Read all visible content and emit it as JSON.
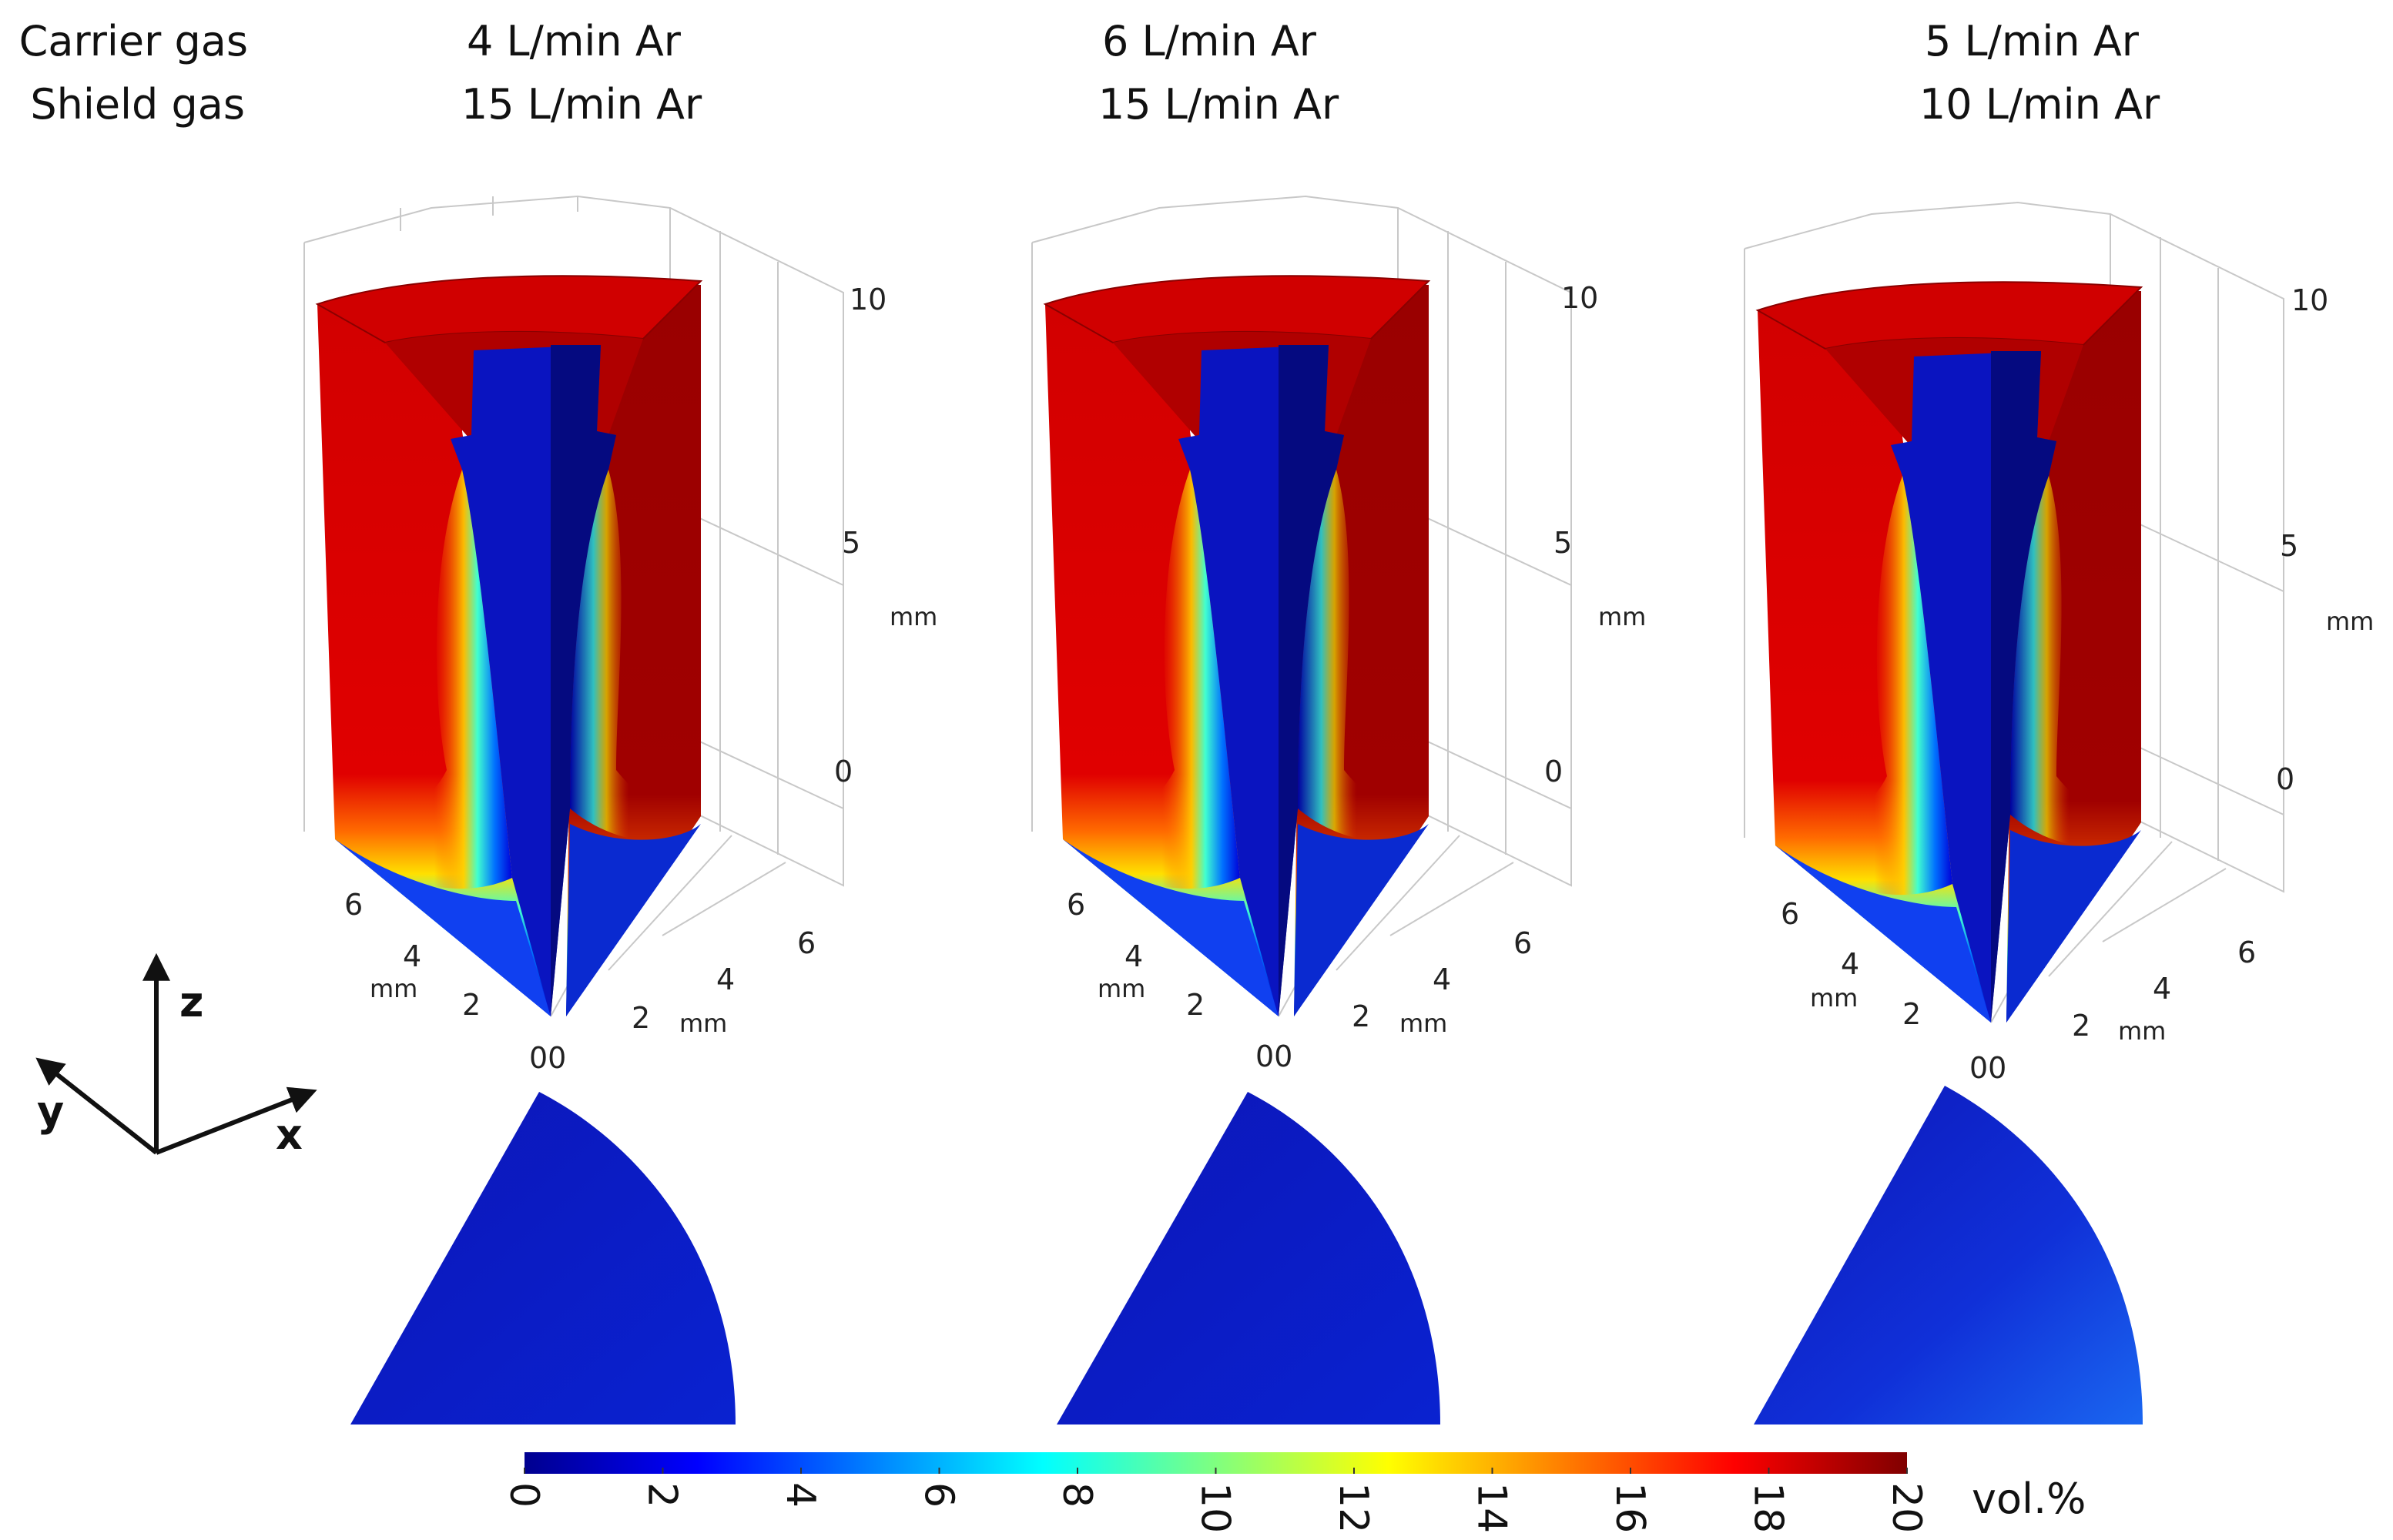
{
  "row_labels": {
    "carrier": "Carrier gas",
    "shield": "Shield gas"
  },
  "cases": [
    {
      "carrier": "4 L/min Ar",
      "shield": "15 L/min Ar",
      "top_fraction": 0.0
    },
    {
      "carrier": "6 L/min Ar",
      "shield": "15 L/min Ar",
      "top_fraction": 0.0
    },
    {
      "carrier": "5 L/min Ar",
      "shield": "10 L/min Ar",
      "top_fraction": 0.12
    }
  ],
  "axes_3d": {
    "z_ticks": [
      "10",
      "5",
      "0"
    ],
    "y_ticks": [
      "6",
      "4",
      "2"
    ],
    "x_ticks": [
      "2",
      "4",
      "6"
    ],
    "origin_label": "00",
    "unit": "mm"
  },
  "triad": {
    "z": "z",
    "y": "y",
    "x": "x"
  },
  "colorbar": {
    "ticks": [
      "0",
      "2",
      "4",
      "6",
      "8",
      "10",
      "12",
      "14",
      "16",
      "18",
      "20"
    ],
    "min": 0,
    "max": 20,
    "unit": "vol.%",
    "colors": [
      "#00008f",
      "#0000ff",
      "#00ffff",
      "#ffff00",
      "#ff0000",
      "#800000"
    ]
  }
}
